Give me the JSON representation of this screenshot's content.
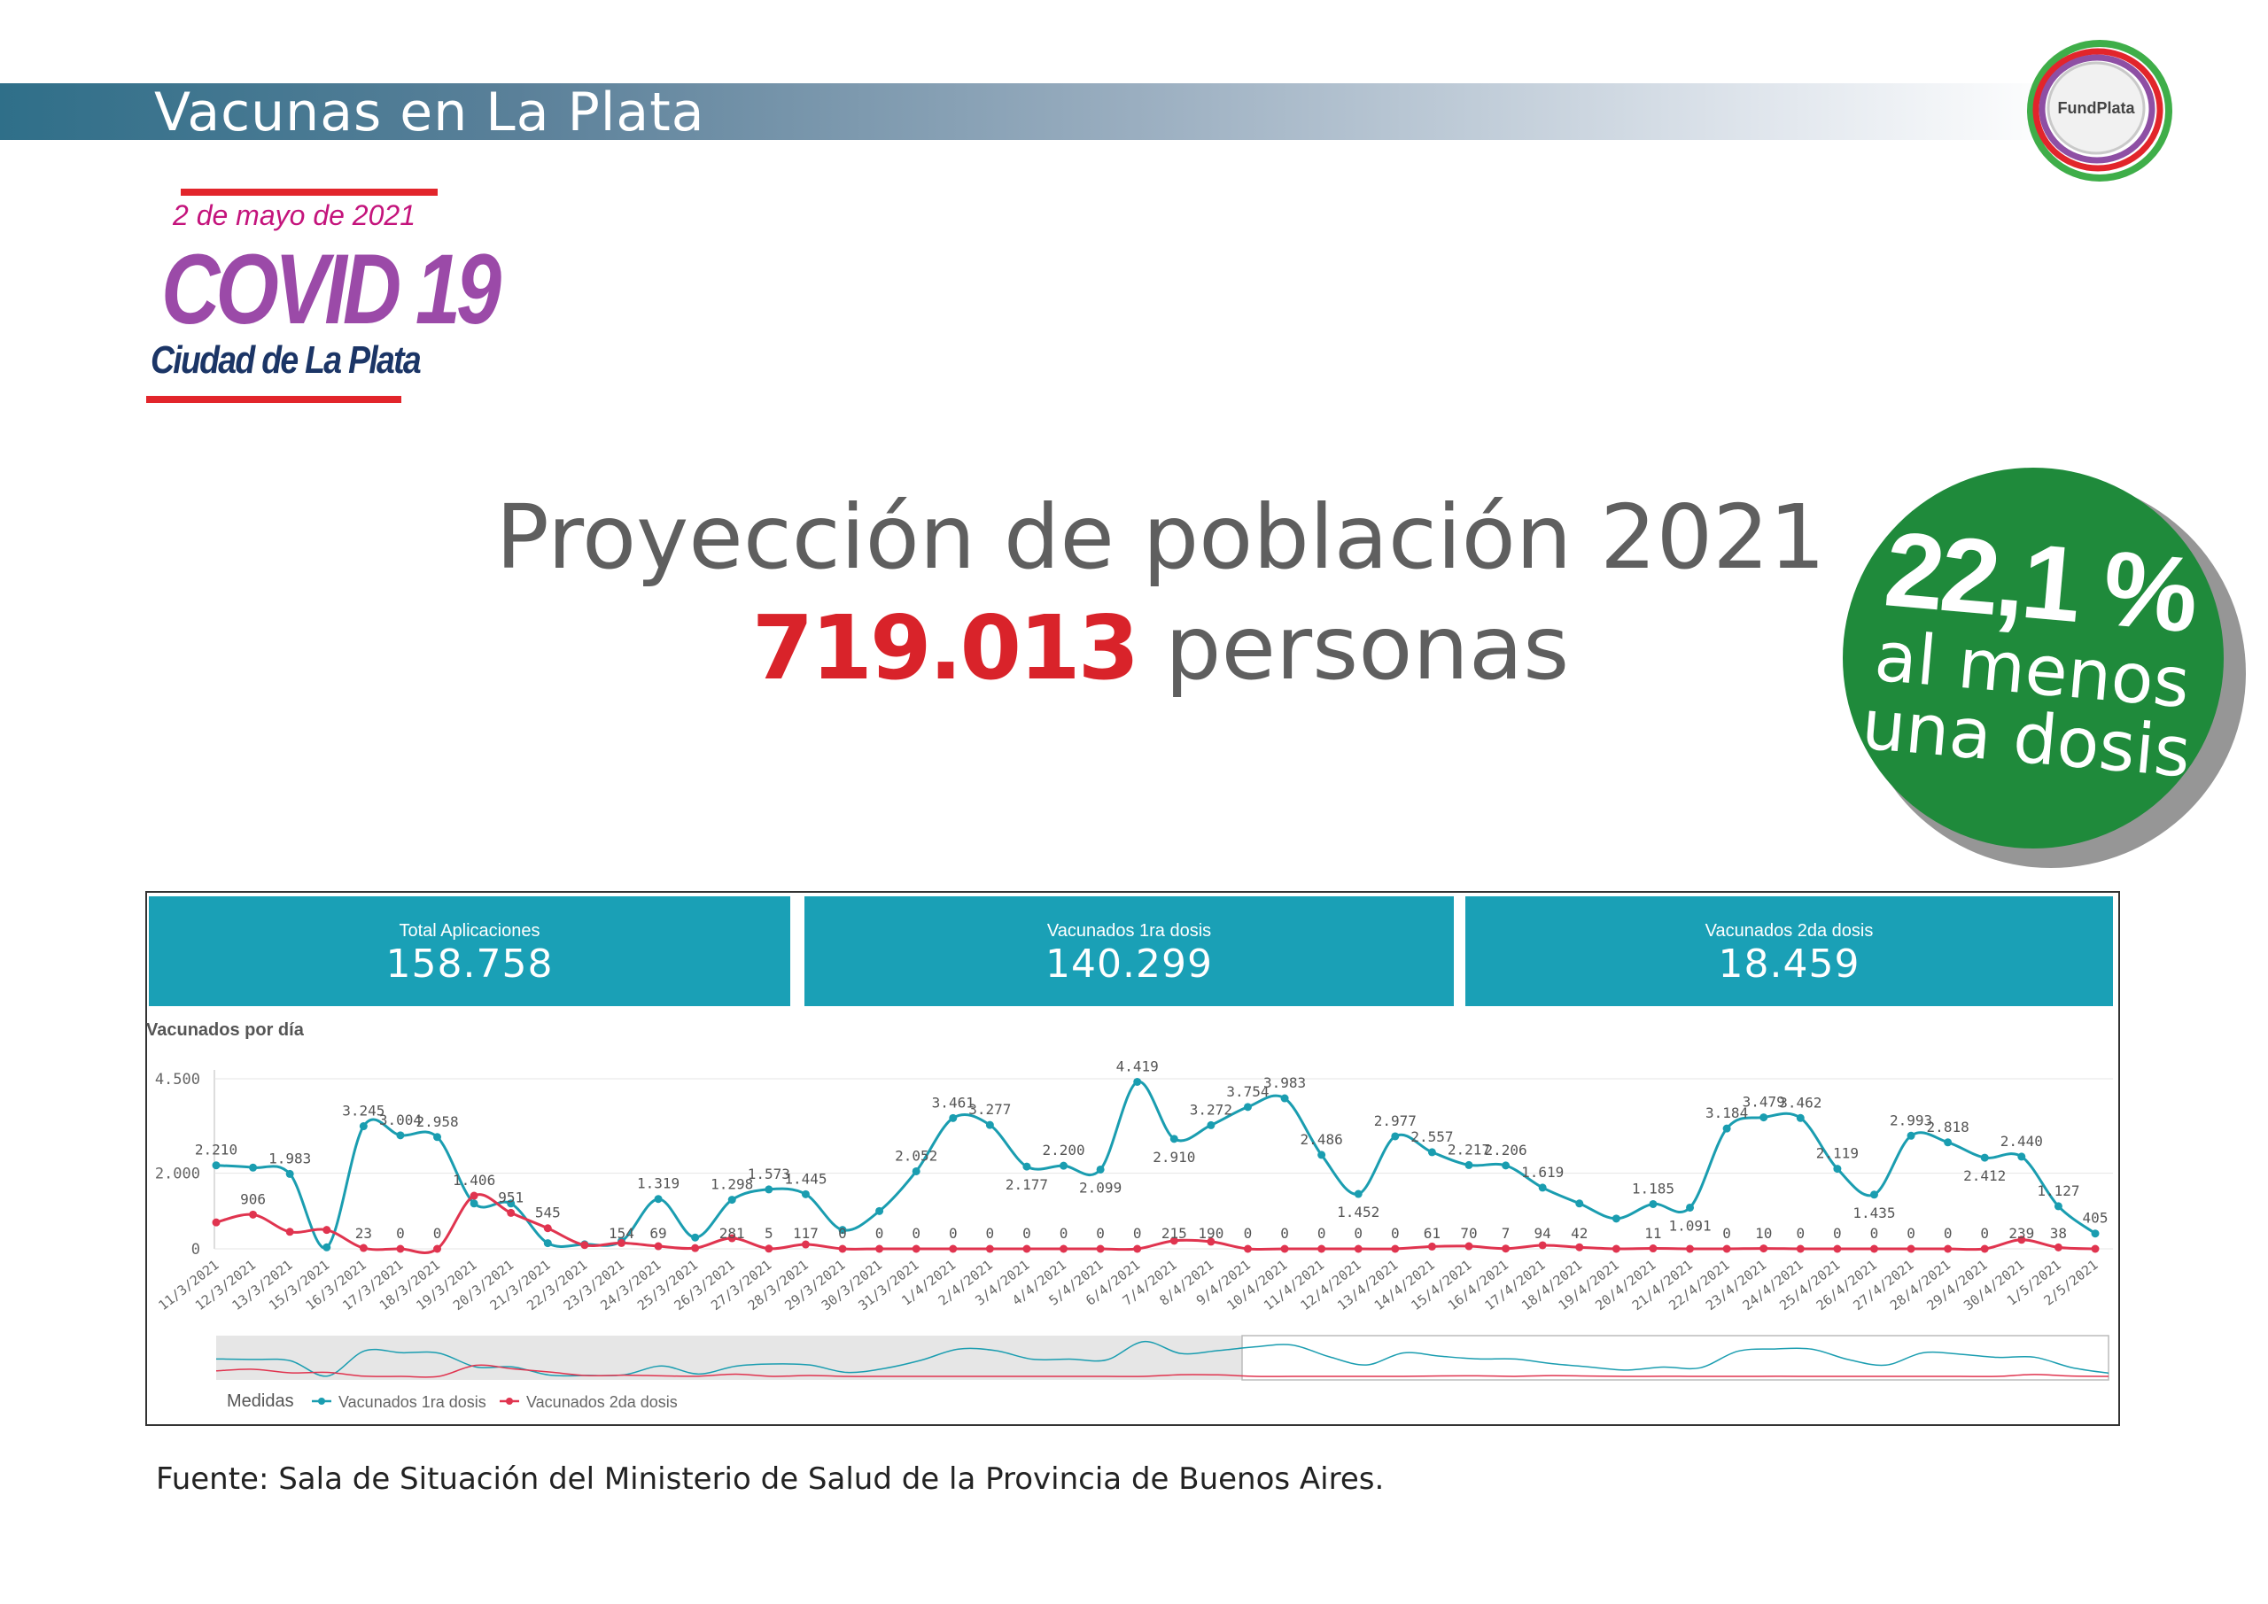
{
  "header": {
    "title": "Vacunas en La Plata",
    "logo_text": "FundPlata"
  },
  "covid_badge": {
    "date": "2 de mayo de 2021",
    "title": "COVID 19",
    "city": "Ciudad de La Plata"
  },
  "projection": {
    "title": "Proyección de población 2021",
    "number": "719.013",
    "unit": "personas"
  },
  "percent_badge": {
    "value": "22,1 %",
    "line1": "al menos",
    "line2": "una dosis"
  },
  "kpis": [
    {
      "label": "Total Aplicaciones",
      "value": "158.758"
    },
    {
      "label": "Vacunados 1ra dosis",
      "value": "140.299"
    },
    {
      "label": "Vacunados 2da dosis",
      "value": "18.459"
    }
  ],
  "source": "Fuente: Sala de Situación del Ministerio de Salud de la Provincia de Buenos Aires.",
  "colors": {
    "series1": "#1a9db0",
    "series2": "#e0344f",
    "kpi": "#1aa0b6"
  },
  "chart_data": {
    "type": "line",
    "title": "Vacunados por día",
    "legend_title": "Medidas",
    "ylim": [
      0,
      4500
    ],
    "yticks": [
      "4.500",
      "2.000",
      "0"
    ],
    "ytick_values": [
      4500,
      2000,
      0
    ],
    "grid": true,
    "legend_position": "bottom-left",
    "categories": [
      "11/3/2021",
      "12/3/2021",
      "13/3/2021",
      "15/3/2021",
      "16/3/2021",
      "17/3/2021",
      "18/3/2021",
      "19/3/2021",
      "20/3/2021",
      "21/3/2021",
      "22/3/2021",
      "23/3/2021",
      "24/3/2021",
      "25/3/2021",
      "26/3/2021",
      "27/3/2021",
      "28/3/2021",
      "29/3/2021",
      "30/3/2021",
      "31/3/2021",
      "1/4/2021",
      "2/4/2021",
      "3/4/2021",
      "4/4/2021",
      "5/4/2021",
      "6/4/2021",
      "7/4/2021",
      "8/4/2021",
      "9/4/2021",
      "10/4/2021",
      "11/4/2021",
      "12/4/2021",
      "13/4/2021",
      "14/4/2021",
      "15/4/2021",
      "16/4/2021",
      "17/4/2021",
      "18/4/2021",
      "19/4/2021",
      "20/4/2021",
      "21/4/2021",
      "22/4/2021",
      "23/4/2021",
      "24/4/2021",
      "25/4/2021",
      "26/4/2021",
      "27/4/2021",
      "28/4/2021",
      "29/4/2021",
      "30/4/2021",
      "1/5/2021",
      "2/5/2021"
    ],
    "series": [
      {
        "name": "Vacunados 1ra dosis",
        "values": [
          2210,
          2150,
          1983,
          40,
          3245,
          3004,
          2958,
          1200,
          1200,
          150,
          120,
          200,
          1319,
          300,
          1298,
          1573,
          1445,
          500,
          1000,
          2052,
          3461,
          3277,
          2177,
          2200,
          2099,
          4419,
          2910,
          3272,
          3754,
          3983,
          2486,
          1452,
          2977,
          2557,
          2217,
          2206,
          1619,
          1200,
          800,
          1185,
          1091,
          3184,
          3479,
          3462,
          2119,
          1435,
          2993,
          2818,
          2412,
          2440,
          1127,
          405
        ],
        "labels": [
          "2.210",
          "",
          "1.983",
          "",
          "3.245",
          "3.004",
          "2.958",
          "",
          "",
          "",
          "",
          "",
          "1.319",
          "",
          "1.298",
          "1.573",
          "1.445",
          "",
          "",
          "2.052",
          "3.461",
          "3.277",
          "2.177",
          "2.200",
          "2.099",
          "4.419",
          "2.910",
          "3.272",
          "3.754",
          "3.983",
          "2.486",
          "1.452",
          "2.977",
          "2.557",
          "2.217",
          "2.206",
          "1.619",
          "",
          "",
          "1.185",
          "1.091",
          "3.184",
          "3.479",
          "3.462",
          "2.119",
          "1.435",
          "2.993",
          "2.818",
          "2.412",
          "2.440",
          "1.127",
          "405"
        ]
      },
      {
        "name": "Vacunados 2da dosis",
        "values": [
          700,
          906,
          450,
          500,
          23,
          0,
          0,
          1406,
          951,
          545,
          100,
          154,
          69,
          20,
          281,
          5,
          117,
          0,
          0,
          0,
          0,
          0,
          0,
          0,
          0,
          0,
          215,
          190,
          0,
          0,
          0,
          0,
          0,
          61,
          70,
          7,
          94,
          42,
          0,
          11,
          0,
          0,
          10,
          0,
          0,
          0,
          0,
          0,
          0,
          239,
          38,
          0
        ],
        "labels": [
          "",
          "906",
          "",
          "",
          "23",
          "0",
          "0",
          "1.406",
          "951",
          "545",
          "",
          "154",
          "69",
          "",
          "281",
          "5",
          "117",
          "0",
          "0",
          "0",
          "0",
          "0",
          "0",
          "0",
          "0",
          "0",
          "215",
          "190",
          "0",
          "0",
          "0",
          "0",
          "0",
          "61",
          "70",
          "7",
          "94",
          "42",
          "",
          "11",
          "",
          "0",
          "10",
          "0",
          "0",
          "0",
          "0",
          "0",
          "0",
          "239",
          "38",
          ""
        ]
      }
    ]
  }
}
